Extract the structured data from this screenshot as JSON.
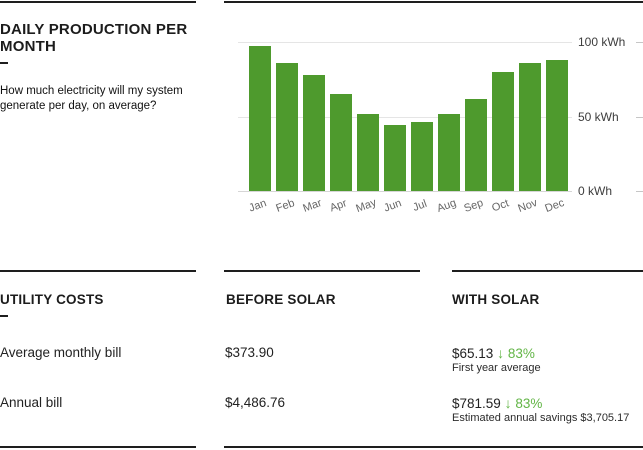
{
  "colors": {
    "bar_green": "#4e9a2d",
    "accent_green": "#62b546",
    "divider_black": "#1e1e1e"
  },
  "production_section": {
    "title_line1": "DAILY PRODUCTION PER",
    "title_line2": "MONTH",
    "description_line1": "How much electricity will my system",
    "description_line2": "generate per day, on average?"
  },
  "chart_data": {
    "type": "bar",
    "title": "Daily production per month",
    "categories": [
      "Jan",
      "Feb",
      "Mar",
      "Apr",
      "May",
      "Jun",
      "Jul",
      "Aug",
      "Sep",
      "Oct",
      "Nov",
      "Dec"
    ],
    "values": [
      97,
      86,
      78,
      65,
      52,
      44,
      46,
      52,
      62,
      80,
      86,
      88
    ],
    "unit": "kWh",
    "xlabel": "",
    "ylabel": "",
    "ylim": [
      0,
      100
    ],
    "y_ticks": [
      "0 kWh",
      "50 kWh",
      "100 kWh"
    ],
    "y_axis_position": "right",
    "grid": true,
    "bar_color": "#4e9a2d"
  },
  "utility_table": {
    "header_col1": "UTILITY COSTS",
    "header_col2": "BEFORE SOLAR",
    "header_col3": "WITH SOLAR",
    "rows": [
      {
        "label": "Average monthly bill",
        "before": "$373.90",
        "with_value": "$65.13",
        "arrow": "↓",
        "percent": "83%",
        "note": "First year average"
      },
      {
        "label": "Annual bill",
        "before": "$4,486.76",
        "with_value": "$781.59",
        "arrow": "↓",
        "percent": "83%",
        "note": "Estimated annual savings $3,705.17"
      }
    ]
  }
}
